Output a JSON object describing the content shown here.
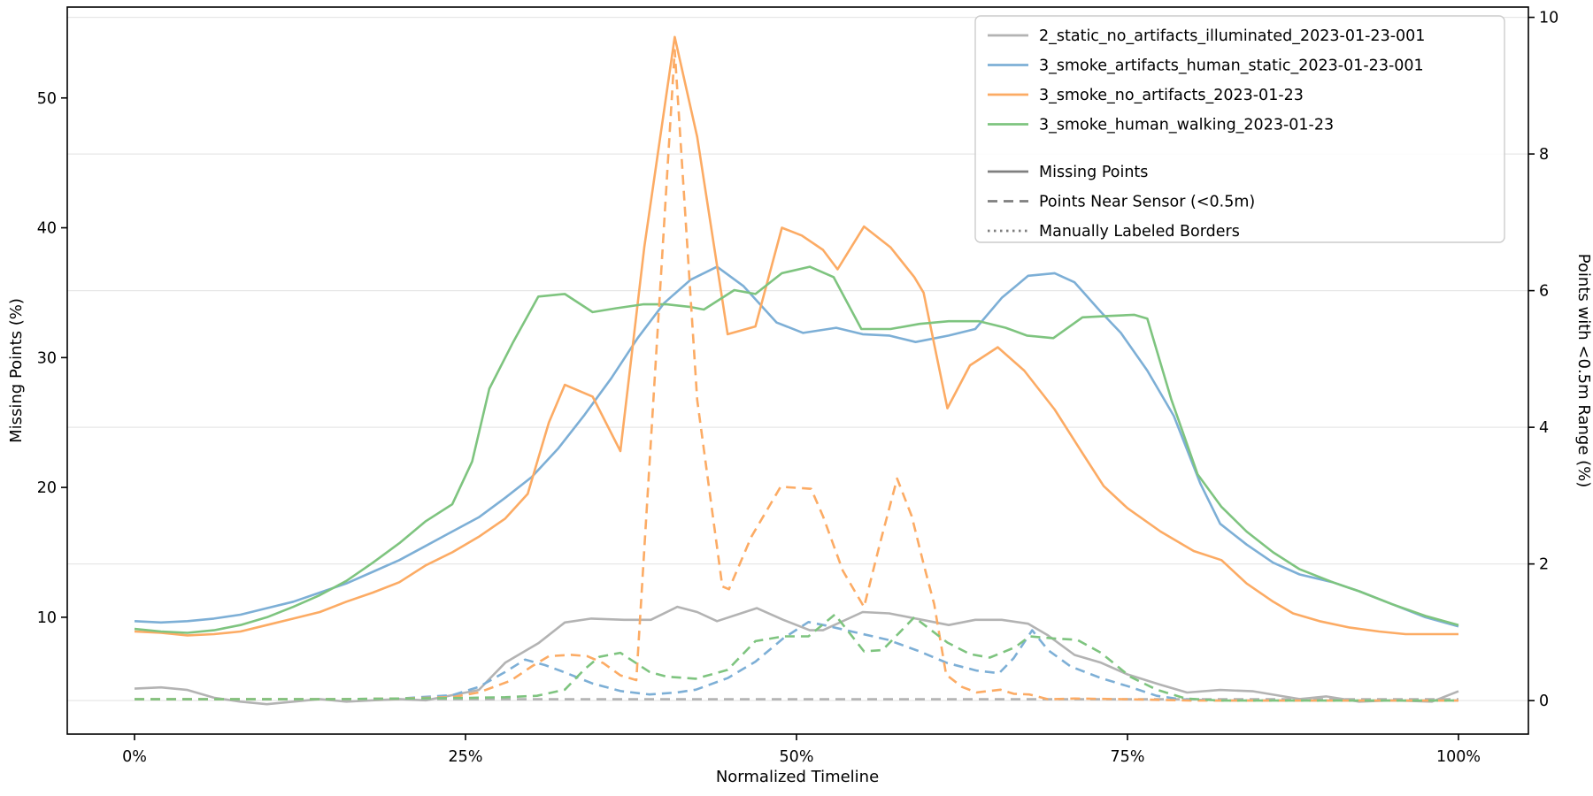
{
  "axes": {
    "xlabel": "Normalized Timeline",
    "ylabel_left": "Missing Points (%)",
    "ylabel_right": "Points with <0.5m Range (%)"
  },
  "legend": {
    "series_entries": [
      {
        "label": "2_static_no_artifacts_illuminated_2023-01-23-001",
        "color": "#b3b3b3"
      },
      {
        "label": "3_smoke_artifacts_human_static_2023-01-23-001",
        "color": "#7dafd6"
      },
      {
        "label": "3_smoke_no_artifacts_2023-01-23",
        "color": "#fcab64"
      },
      {
        "label": "3_smoke_human_walking_2023-01-23",
        "color": "#7ec47f"
      }
    ],
    "style_entries": [
      {
        "label": "Missing Points",
        "style": "solid",
        "color": "#7f7f7f"
      },
      {
        "label": "Points Near Sensor (<0.5m)",
        "style": "dashed",
        "color": "#7f7f7f"
      },
      {
        "label": "Manually Labeled Borders",
        "style": "dotted",
        "color": "#7f7f7f"
      }
    ]
  },
  "chart_data": {
    "type": "line",
    "title": "",
    "xlabel": "Normalized Timeline",
    "ylabel_left": "Missing Points (%)",
    "ylabel_right": "Points with <0.5m Range (%)",
    "grid": "horizontal-on-right-axis-ticks",
    "grid_color": "#e7e7e7",
    "xlim": [
      -5.08,
      105.28
    ],
    "left_ylim": [
      1.0,
      57.0
    ],
    "right_ylim": [
      -0.49,
      10.15
    ],
    "x_tick_values": [
      0,
      25,
      50,
      75,
      100
    ],
    "x_tick_labels": [
      "0%",
      "25%",
      "50%",
      "75%",
      "100%"
    ],
    "left_tick_values": [
      10,
      20,
      30,
      40,
      50
    ],
    "left_tick_labels": [
      "10",
      "20",
      "30",
      "40",
      "50"
    ],
    "right_tick_values": [
      0,
      2,
      4,
      6,
      8,
      10
    ],
    "right_tick_labels": [
      "0",
      "2",
      "4",
      "6",
      "8",
      "10"
    ],
    "legend_position": "upper right",
    "series": [
      {
        "name": "2_static_no_artifacts_illuminated_2023-01-23-001 — Missing Points",
        "scenario": "2_static_no_artifacts_illuminated_2023-01-23-001",
        "metric": "Missing Points",
        "axis": "left",
        "style": "solid",
        "color": "#b3b3b3",
        "x": [
          0,
          2,
          4,
          6,
          8,
          10,
          12,
          14,
          16,
          18,
          20,
          22,
          24,
          26,
          28,
          30.5,
          32.5,
          34.5,
          37,
          39,
          41,
          42.5,
          44,
          47,
          49,
          51,
          52,
          55,
          57,
          59.5,
          61.5,
          63.5,
          65.5,
          67.5,
          69,
          71,
          73,
          75,
          77.5,
          79.5,
          82,
          84.5,
          88,
          90,
          92.5,
          95,
          98,
          100
        ],
        "y": [
          4.5,
          4.6,
          4.4,
          3.8,
          3.5,
          3.3,
          3.5,
          3.7,
          3.5,
          3.6,
          3.7,
          3.6,
          4.0,
          4.4,
          6.5,
          8.0,
          9.6,
          9.9,
          9.8,
          9.8,
          10.8,
          10.4,
          9.7,
          10.7,
          9.8,
          9.0,
          9.0,
          10.4,
          10.3,
          9.8,
          9.4,
          9.8,
          9.8,
          9.5,
          8.6,
          7.1,
          6.5,
          5.6,
          4.8,
          4.2,
          4.4,
          4.3,
          3.7,
          3.9,
          3.5,
          3.6,
          3.5,
          4.3
        ]
      },
      {
        "name": "3_smoke_artifacts_human_static_2023-01-23-001 — Missing Points",
        "scenario": "3_smoke_artifacts_human_static_2023-01-23-001",
        "metric": "Missing Points",
        "axis": "left",
        "style": "solid",
        "color": "#7dafd6",
        "x": [
          0,
          2,
          4,
          6,
          8,
          10,
          12,
          14,
          16,
          18,
          20,
          22,
          24,
          26,
          28,
          30,
          32,
          34,
          36,
          38,
          40,
          42,
          44,
          46,
          48.5,
          50.5,
          53,
          55,
          57,
          59,
          61.5,
          63.5,
          65.5,
          67.5,
          69.5,
          71,
          73,
          74.5,
          76.5,
          78.5,
          80.5,
          82,
          84,
          86,
          88,
          90.5,
          92.5,
          95,
          97.5,
          100
        ],
        "y": [
          9.7,
          9.6,
          9.7,
          9.9,
          10.2,
          10.7,
          11.2,
          11.9,
          12.6,
          13.5,
          14.4,
          15.5,
          16.6,
          17.7,
          19.2,
          20.8,
          23.0,
          25.6,
          28.4,
          31.5,
          34.2,
          36.0,
          37.0,
          35.5,
          32.7,
          31.9,
          32.3,
          31.8,
          31.7,
          31.2,
          31.7,
          32.2,
          34.6,
          36.3,
          36.5,
          35.8,
          33.5,
          31.9,
          29.0,
          25.5,
          20.3,
          17.2,
          15.6,
          14.2,
          13.3,
          12.7,
          12.0,
          11.0,
          10.0,
          9.3
        ]
      },
      {
        "name": "3_smoke_no_artifacts_2023-01-23 — Missing Points",
        "scenario": "3_smoke_no_artifacts_2023-01-23",
        "metric": "Missing Points",
        "axis": "left",
        "style": "solid",
        "color": "#fcab64",
        "x": [
          0,
          2,
          4,
          6,
          8,
          10,
          12,
          14,
          16,
          18,
          20,
          22,
          24,
          26,
          28,
          29.7,
          31.3,
          32.5,
          34.6,
          36.7,
          37.4,
          38.5,
          40.8,
          42.5,
          44.8,
          46.9,
          48.9,
          50.4,
          52,
          53.1,
          55.1,
          57.1,
          58.9,
          59.6,
          61.4,
          63.1,
          65.2,
          67.2,
          69.5,
          71.5,
          73.2,
          75,
          77.5,
          80,
          82.1,
          84,
          86,
          87.5,
          89.5,
          91.8,
          94,
          96,
          98,
          100
        ],
        "y": [
          8.9,
          8.8,
          8.6,
          8.7,
          8.9,
          9.4,
          9.9,
          10.4,
          11.2,
          11.9,
          12.7,
          14.0,
          15.0,
          16.2,
          17.6,
          19.5,
          25.0,
          27.9,
          27.0,
          22.8,
          28.9,
          38.5,
          54.7,
          47.0,
          31.8,
          32.4,
          40.0,
          39.4,
          38.3,
          36.8,
          40.1,
          38.5,
          36.2,
          35.0,
          26.1,
          29.4,
          30.8,
          29.0,
          26.0,
          22.8,
          20.1,
          18.4,
          16.6,
          15.1,
          14.4,
          12.6,
          11.2,
          10.3,
          9.7,
          9.2,
          8.9,
          8.7,
          8.7,
          8.7
        ]
      },
      {
        "name": "3_smoke_human_walking_2023-01-23 — Missing Points",
        "scenario": "3_smoke_human_walking_2023-01-23",
        "metric": "Missing Points",
        "axis": "left",
        "style": "solid",
        "color": "#7ec47f",
        "x": [
          0,
          2,
          4,
          6,
          8,
          10,
          12,
          14,
          16,
          18,
          20,
          22,
          24,
          25.5,
          26.8,
          28.6,
          30.5,
          32.5,
          34.6,
          36.4,
          38.4,
          40.2,
          42,
          43,
          45.3,
          46.9,
          48.9,
          51,
          52.8,
          54.9,
          57.1,
          59.3,
          61.5,
          63.8,
          65.8,
          67.4,
          69.4,
          71.6,
          73.5,
          75.5,
          76.5,
          78.3,
          80.3,
          82.1,
          84,
          86,
          88,
          90.5,
          92.5,
          95,
          97.5,
          100
        ],
        "y": [
          9.1,
          8.9,
          8.8,
          9.0,
          9.4,
          10.0,
          10.8,
          11.7,
          12.8,
          14.2,
          15.7,
          17.4,
          18.7,
          22.0,
          27.6,
          31.2,
          34.7,
          34.9,
          33.5,
          33.8,
          34.1,
          34.1,
          33.9,
          33.7,
          35.2,
          34.9,
          36.5,
          37.0,
          36.2,
          32.2,
          32.2,
          32.6,
          32.8,
          32.8,
          32.3,
          31.7,
          31.5,
          33.1,
          33.2,
          33.3,
          33.0,
          26.8,
          21.0,
          18.5,
          16.6,
          15.0,
          13.7,
          12.7,
          12.0,
          11.0,
          10.1,
          9.4
        ]
      },
      {
        "name": "2_static_no_artifacts_illuminated_2023-01-23-001 — Points Near Sensor (<0.5m)",
        "scenario": "2_static_no_artifacts_illuminated_2023-01-23-001",
        "metric": "Points Near Sensor (<0.5m)",
        "axis": "right",
        "style": "dashed",
        "color": "#b3b3b3",
        "x": [
          0,
          10,
          20,
          30,
          40,
          50,
          60,
          70,
          80,
          90,
          100
        ],
        "y": [
          0.02,
          0.02,
          0.02,
          0.02,
          0.02,
          0.02,
          0.02,
          0.02,
          0.02,
          0.02,
          0.02
        ]
      },
      {
        "name": "3_smoke_artifacts_human_static_2023-01-23-001 — Points Near Sensor (<0.5m)",
        "scenario": "3_smoke_artifacts_human_static_2023-01-23-001",
        "metric": "Points Near Sensor (<0.5m)",
        "axis": "right",
        "style": "dashed",
        "color": "#7dafd6",
        "x": [
          0,
          5,
          10,
          15,
          20,
          24,
          26,
          28,
          29.5,
          31,
          32.4,
          34.6,
          36.7,
          38.9,
          41,
          42.4,
          44.8,
          46.9,
          49,
          50.9,
          52.2,
          54.2,
          56.9,
          59.3,
          61.4,
          63.6,
          65.3,
          66.4,
          67.8,
          69,
          70.7,
          73,
          75.2,
          77.2,
          79,
          82,
          100
        ],
        "y": [
          0.02,
          0.02,
          0.02,
          0.02,
          0.03,
          0.08,
          0.2,
          0.42,
          0.6,
          0.52,
          0.42,
          0.25,
          0.14,
          0.09,
          0.12,
          0.16,
          0.33,
          0.57,
          0.91,
          1.15,
          1.1,
          1.01,
          0.89,
          0.72,
          0.55,
          0.44,
          0.4,
          0.62,
          1.03,
          0.74,
          0.5,
          0.33,
          0.2,
          0.07,
          0.02,
          0.0,
          0.0
        ]
      },
      {
        "name": "3_smoke_no_artifacts_2023-01-23 — Points Near Sensor (<0.5m)",
        "scenario": "3_smoke_no_artifacts_2023-01-23",
        "metric": "Points Near Sensor (<0.5m)",
        "axis": "right",
        "style": "dashed",
        "color": "#fcab64",
        "x": [
          0,
          5,
          10,
          15,
          20,
          24,
          26,
          28.4,
          30,
          31.3,
          33,
          34.2,
          35.4,
          36.7,
          37.9,
          40.8,
          42.5,
          44.4,
          44.9,
          46.6,
          48.8,
          51.1,
          52,
          53.5,
          55.1,
          56.3,
          57.6,
          58.7,
          59.6,
          60.4,
          61.3,
          62.5,
          63.6,
          65.4,
          66.4,
          67.6,
          69,
          71,
          75,
          80,
          100
        ],
        "y": [
          0.02,
          0.02,
          0.02,
          0.02,
          0.03,
          0.05,
          0.12,
          0.29,
          0.5,
          0.65,
          0.67,
          0.65,
          0.55,
          0.37,
          0.3,
          9.52,
          4.4,
          1.67,
          1.63,
          2.4,
          3.13,
          3.1,
          2.7,
          1.9,
          1.37,
          2.3,
          3.25,
          2.7,
          2.0,
          1.41,
          0.38,
          0.2,
          0.12,
          0.16,
          0.1,
          0.09,
          0.02,
          0.03,
          0.02,
          0.0,
          0.0
        ]
      },
      {
        "name": "3_smoke_human_walking_2023-01-23 — Points Near Sensor (<0.5m)",
        "scenario": "3_smoke_human_walking_2023-01-23",
        "metric": "Points Near Sensor (<0.5m)",
        "axis": "right",
        "style": "dashed",
        "color": "#7ec47f",
        "x": [
          0,
          5,
          10,
          15,
          20,
          25,
          28,
          30.4,
          32.5,
          34,
          35.1,
          36.7,
          38.9,
          40.2,
          42.4,
          44.8,
          46.9,
          49,
          50.9,
          52.9,
          55.1,
          56.5,
          58.9,
          61.4,
          63.1,
          64.6,
          66.5,
          67.6,
          69.4,
          71.2,
          73,
          75.2,
          77.2,
          79.4,
          82,
          100
        ],
        "y": [
          0.02,
          0.02,
          0.02,
          0.02,
          0.03,
          0.04,
          0.05,
          0.07,
          0.16,
          0.46,
          0.64,
          0.7,
          0.42,
          0.35,
          0.32,
          0.45,
          0.87,
          0.94,
          0.94,
          1.26,
          0.72,
          0.74,
          1.22,
          0.85,
          0.68,
          0.63,
          0.78,
          0.94,
          0.91,
          0.89,
          0.7,
          0.35,
          0.16,
          0.03,
          0.0,
          0.0
        ]
      }
    ]
  }
}
